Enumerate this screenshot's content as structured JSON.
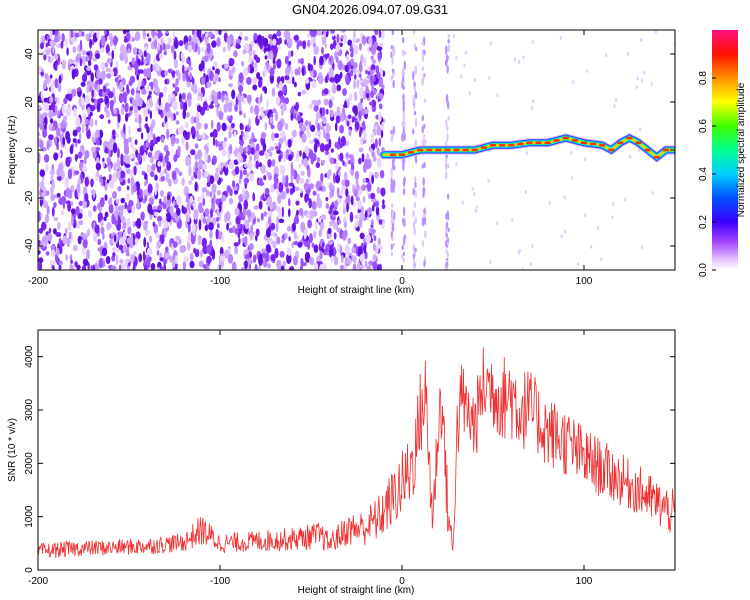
{
  "title": "GN04.2026.094.07.09.G31",
  "chart_data": [
    {
      "type": "heatmap",
      "xlabel": "Height of straight line (km)",
      "ylabel": "Frequency (Hz)",
      "xlim": [
        -200,
        150
      ],
      "ylim": [
        -50,
        50
      ],
      "x_ticks": [
        -200,
        -100,
        0,
        100
      ],
      "y_ticks": [
        -40,
        -20,
        0,
        20,
        40
      ],
      "colorbar": {
        "label": "Normalized spectral amplitude",
        "range": [
          0,
          1
        ],
        "ticks": [
          "0.0",
          "0.2",
          "0.4",
          "0.6",
          "0.8"
        ],
        "colors": [
          "#ffffff",
          "#c070ff",
          "#7a00ff",
          "#0000ff",
          "#00c8ff",
          "#00ff60",
          "#ffff00",
          "#ff8000",
          "#ff0000",
          "#ff1493"
        ]
      },
      "noise_region_x": [
        -200,
        -15
      ],
      "signal_track": {
        "description_x": [
          -10,
          150
        ],
        "x": [
          -10,
          0,
          10,
          20,
          30,
          40,
          50,
          60,
          70,
          80,
          90,
          100,
          110,
          115,
          120,
          125,
          130,
          135,
          140,
          145,
          150
        ],
        "y": [
          -2,
          -2,
          0,
          0,
          0,
          0,
          2,
          2,
          3,
          3,
          5,
          3,
          2,
          0,
          3,
          5,
          3,
          0,
          -3,
          0,
          0
        ],
        "peak_amplitude": 0.9
      },
      "grid": false
    },
    {
      "type": "line",
      "xlabel": "Height of straight line (km)",
      "ylabel": "SNR (10 * v/v)",
      "xlim": [
        -200,
        150
      ],
      "ylim": [
        0,
        4500
      ],
      "x_ticks": [
        -200,
        -100,
        0,
        100
      ],
      "y_ticks": [
        0,
        1000,
        2000,
        3000,
        4000
      ],
      "color": "#f03030",
      "series": [
        {
          "x": [
            -200,
            -180,
            -160,
            -140,
            -120,
            -110,
            -100,
            -80,
            -60,
            -45,
            -40,
            -30,
            -20,
            -12,
            -5,
            0,
            5,
            8,
            10,
            13,
            15,
            17,
            20,
            22,
            25,
            28,
            30,
            33,
            35,
            40,
            45,
            50,
            55,
            60,
            65,
            70,
            75,
            80,
            90,
            100,
            110,
            120,
            130,
            140,
            150
          ],
          "y": [
            350,
            400,
            420,
            450,
            520,
            750,
            500,
            540,
            580,
            650,
            500,
            750,
            800,
            1000,
            1350,
            1600,
            1900,
            2400,
            2900,
            3300,
            2000,
            900,
            2800,
            3200,
            1200,
            300,
            2500,
            3300,
            3000,
            2700,
            3500,
            3400,
            3200,
            3300,
            3000,
            3050,
            2800,
            2600,
            2400,
            2100,
            1900,
            1700,
            1500,
            1250,
            1050
          ],
          "spread": [
            150,
            150,
            150,
            160,
            180,
            300,
            180,
            200,
            220,
            260,
            200,
            300,
            350,
            450,
            550,
            650,
            750,
            800,
            850,
            800,
            800,
            500,
            800,
            700,
            600,
            250,
            700,
            700,
            700,
            700,
            800,
            800,
            800,
            900,
            800,
            750,
            700,
            700,
            650,
            600,
            550,
            500,
            480,
            450,
            450
          ]
        }
      ],
      "grid": false
    }
  ]
}
